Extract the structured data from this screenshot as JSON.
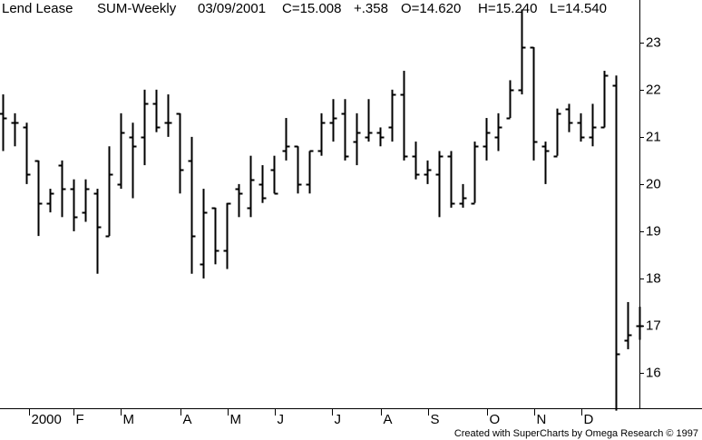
{
  "chart_data": {
    "type": "ohlc",
    "title": "Lend Lease",
    "header_items": [
      {
        "text": "SUM-Weekly"
      },
      {
        "text": "03/09/2001"
      },
      {
        "text": "C=15.008"
      },
      {
        "text": "+.358",
        "color": "#00cc00"
      },
      {
        "text": "O=14.620"
      },
      {
        "text": "H=15.240"
      },
      {
        "text": "L=14.540"
      }
    ],
    "footer": "Created with SuperCharts by Omega Research © 1997",
    "color": "#000000",
    "ylim": [
      15.25,
      23.9
    ],
    "yticks": [
      16,
      17,
      18,
      19,
      20,
      21,
      22,
      23
    ],
    "xlim": [
      -0.23,
      54.0
    ],
    "xticks": [
      {
        "value": 2.2,
        "label": "2000"
      },
      {
        "value": 6,
        "label": "F"
      },
      {
        "value": 10,
        "label": "M"
      },
      {
        "value": 15.1,
        "label": "A"
      },
      {
        "value": 19.1,
        "label": "M"
      },
      {
        "value": 23.1,
        "label": "J"
      },
      {
        "value": 27.9,
        "label": "J"
      },
      {
        "value": 32.1,
        "label": "A"
      },
      {
        "value": 36.1,
        "label": "S"
      },
      {
        "value": 41.1,
        "label": "O"
      },
      {
        "value": 45.1,
        "label": "N"
      },
      {
        "value": 49.1,
        "label": "D"
      }
    ],
    "series": {
      "open": [
        21.5,
        21.3,
        21.2,
        20.5,
        19.6,
        20.4,
        19.9,
        19.4,
        19.8,
        18.9,
        20.0,
        21.0,
        21.0,
        21.7,
        21.3,
        21.5,
        20.5,
        18.3,
        19.5,
        18.6,
        19.9,
        19.5,
        20.0,
        20.3,
        20.7,
        20.8,
        20.0,
        20.7,
        21.3,
        21.5,
        20.9,
        21.0,
        21.1,
        21.2,
        21.9,
        20.6,
        20.2,
        20.2,
        20.6,
        19.6,
        19.6,
        20.8,
        21.0,
        21.4,
        22.0,
        22.9,
        20.8,
        20.6,
        21.6,
        21.3,
        21.0,
        21.2,
        22.1,
        16.7,
        17.0
      ],
      "high": [
        21.9,
        21.5,
        21.3,
        20.5,
        19.9,
        20.5,
        20.1,
        20.1,
        19.9,
        20.8,
        21.5,
        21.3,
        22.0,
        22.0,
        21.9,
        21.5,
        21.0,
        19.9,
        19.5,
        19.6,
        20.0,
        20.6,
        20.4,
        20.6,
        21.4,
        20.8,
        20.7,
        21.5,
        21.8,
        21.8,
        21.5,
        21.8,
        21.2,
        22.0,
        22.4,
        20.9,
        20.5,
        20.7,
        20.7,
        20.0,
        20.9,
        21.4,
        21.5,
        22.2,
        23.7,
        22.9,
        20.9,
        21.6,
        21.7,
        21.5,
        21.7,
        22.4,
        22.3,
        17.5,
        17.4
      ],
      "low": [
        20.7,
        20.8,
        20.0,
        18.9,
        19.4,
        19.3,
        19.0,
        19.2,
        18.1,
        18.9,
        19.9,
        19.7,
        20.4,
        21.1,
        21.0,
        19.8,
        18.1,
        18.0,
        18.3,
        18.2,
        19.3,
        19.3,
        19.6,
        19.8,
        20.5,
        19.8,
        19.8,
        20.6,
        20.9,
        20.5,
        20.4,
        20.9,
        20.8,
        20.9,
        20.5,
        20.1,
        20.0,
        19.3,
        19.5,
        19.5,
        19.6,
        20.5,
        20.7,
        21.4,
        21.9,
        20.5,
        20.0,
        20.6,
        21.1,
        20.9,
        20.8,
        21.2,
        15.2,
        16.5,
        16.7
      ],
      "close": [
        21.4,
        21.3,
        20.2,
        19.6,
        19.8,
        19.9,
        19.3,
        19.9,
        19.1,
        20.2,
        21.1,
        20.8,
        21.7,
        21.2,
        21.3,
        20.3,
        18.9,
        19.4,
        18.6,
        19.6,
        19.8,
        20.1,
        19.7,
        19.8,
        20.8,
        20.0,
        20.7,
        21.3,
        21.4,
        20.6,
        21.1,
        21.1,
        21.0,
        21.9,
        20.6,
        20.2,
        20.3,
        20.6,
        19.6,
        19.7,
        20.8,
        21.1,
        21.2,
        22.0,
        22.9,
        20.9,
        20.7,
        21.5,
        21.3,
        21.0,
        21.2,
        22.3,
        16.4,
        16.8,
        17.0
      ]
    }
  }
}
